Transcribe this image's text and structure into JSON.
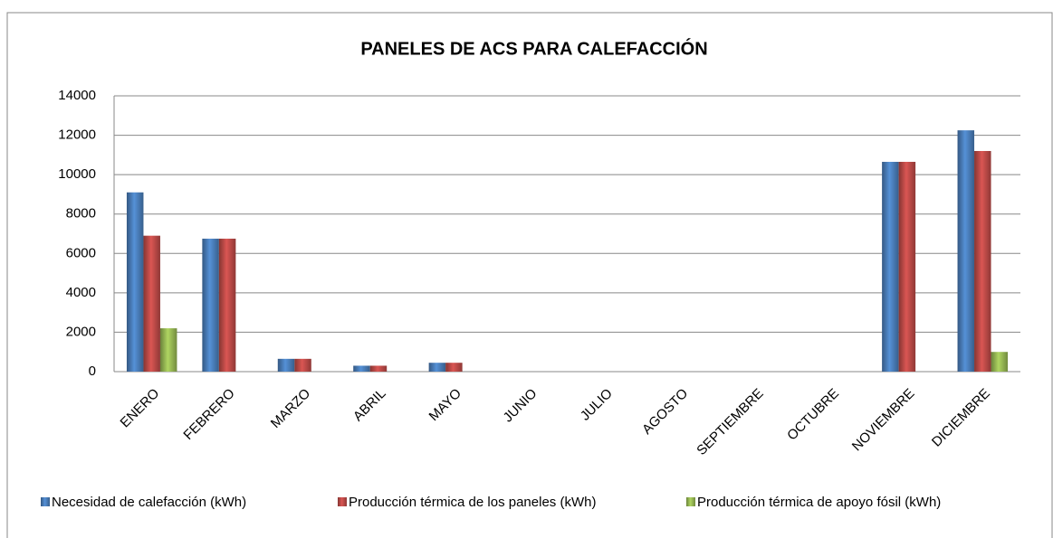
{
  "chart_data": {
    "type": "bar",
    "title": "PANELES DE ACS PARA CALEFACCIÓN",
    "categories": [
      "ENERO",
      "FEBRERO",
      "MARZO",
      "ABRIL",
      "MAYO",
      "JUNIO",
      "JULIO",
      "AGOSTO",
      "SEPTIEMBRE",
      "OCTUBRE",
      "NOVIEMBRE",
      "DICIEMBRE"
    ],
    "series": [
      {
        "name": "Necesidad de calefacción (kWh)",
        "color": "#4a7ebb",
        "values": [
          9100,
          6750,
          650,
          300,
          450,
          0,
          0,
          0,
          0,
          0,
          10650,
          12250
        ]
      },
      {
        "name": "Producción térmica de los paneles (kWh)",
        "color": "#be4b48",
        "values": [
          6900,
          6750,
          650,
          300,
          450,
          0,
          0,
          0,
          0,
          0,
          10650,
          11200
        ]
      },
      {
        "name": "Producción térmica de apoyo fósil (kWh)",
        "color": "#98b954",
        "values": [
          2200,
          0,
          0,
          0,
          0,
          0,
          0,
          0,
          0,
          0,
          0,
          1000
        ]
      }
    ],
    "ylim": [
      0,
      14000
    ],
    "yticks": [
      0,
      2000,
      4000,
      6000,
      8000,
      10000,
      12000,
      14000
    ],
    "grid": true,
    "legend": "bottom"
  }
}
